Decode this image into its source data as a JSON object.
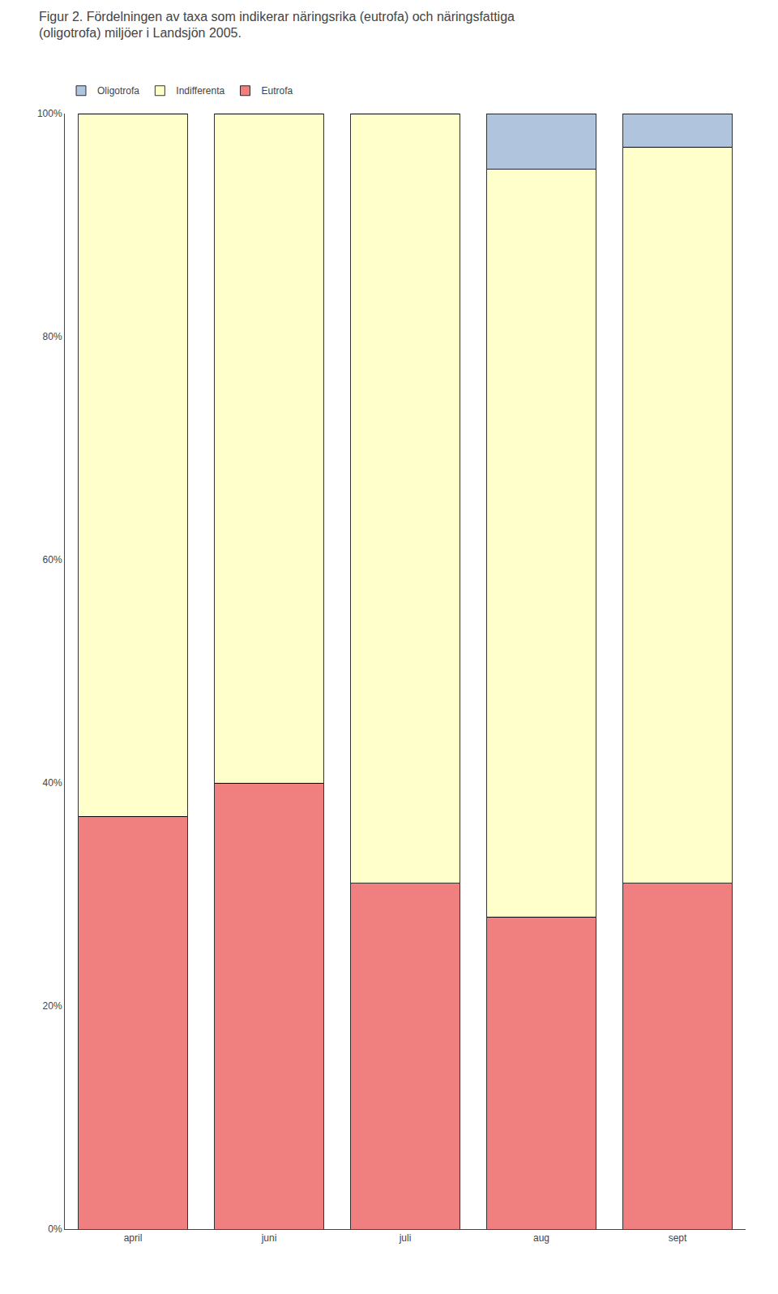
{
  "chart_data": {
    "type": "bar",
    "title": "Figur 2. Fördelningen av taxa som indikerar näringsrika (eutrofa) och näringsfattiga\n(oligotrofa) miljöer i Landsjön 2005.",
    "categories": [
      "april",
      "juni",
      "juli",
      "aug",
      "sept"
    ],
    "series": [
      {
        "name": "Eutrofa",
        "color": "#f08080",
        "values": [
          37,
          40,
          31,
          28,
          31
        ]
      },
      {
        "name": "Indifferenta",
        "color": "#ffffcc",
        "values": [
          63,
          60,
          69,
          67,
          66
        ]
      },
      {
        "name": "Oligotrofa",
        "color": "#b0c4de",
        "values": [
          0,
          0,
          0,
          5,
          3
        ]
      }
    ],
    "stacked": true,
    "ylim": [
      0,
      100
    ],
    "yticks": [
      {
        "value": 0,
        "label": "0%"
      },
      {
        "value": 20,
        "label": "20%"
      },
      {
        "value": 40,
        "label": "40%"
      },
      {
        "value": 60,
        "label": "60%"
      },
      {
        "value": 80,
        "label": "80%"
      },
      {
        "value": 100,
        "label": "100%"
      }
    ],
    "grid": false,
    "legend": "top"
  }
}
